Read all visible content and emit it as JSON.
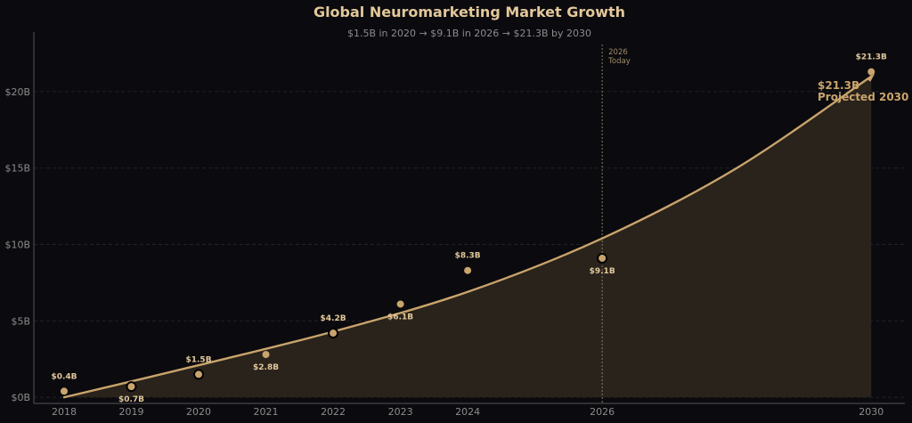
{
  "chart_data": {
    "type": "line",
    "title": "Global Neuromarketing Market Growth",
    "subtitle": "$1.5B in 2020 → $9.1B in 2026 → $21.3B by 2030",
    "x": [
      2018,
      2019,
      2020,
      2021,
      2022,
      2023,
      2024,
      2026,
      2030
    ],
    "y": [
      0.4,
      0.7,
      1.5,
      2.8,
      4.2,
      6.1,
      8.3,
      9.1,
      21.3
    ],
    "data_labels": [
      "$0.4B",
      "$0.7B",
      "$1.5B",
      "$2.8B",
      "$4.2B",
      "$6.1B",
      "$8.3B",
      "$9.1B",
      "$21.3B"
    ],
    "highlighted_years": [
      2019,
      2020,
      2022,
      2026
    ],
    "x_ticks": [
      "2018",
      "2019",
      "2020",
      "2021",
      "2022",
      "2023",
      "2024",
      "2026",
      "2030"
    ],
    "y_ticks": [
      {
        "value": 0,
        "label": "$0B"
      },
      {
        "value": 5,
        "label": "$5B"
      },
      {
        "value": 10,
        "label": "$10B"
      },
      {
        "value": 15,
        "label": "$15B"
      },
      {
        "value": 20,
        "label": "$20B"
      }
    ],
    "xlim": [
      2017.55,
      2030.5
    ],
    "ylim": [
      -0.4,
      23.9
    ],
    "trend_curve": {
      "x": [
        2018,
        2020,
        2022,
        2024,
        2026,
        2028,
        2030
      ],
      "y": [
        0.0,
        2.1,
        4.3,
        6.9,
        10.4,
        15.0,
        21.0
      ],
      "area_fill": true
    },
    "today_marker": {
      "x": 2026,
      "label_line1": "2026",
      "label_line2": "Today"
    },
    "callout": {
      "line1": "$21.3B",
      "line2": "Projected 2030"
    },
    "grid": "horizontal-dashed",
    "colors": {
      "background": "#0b0a0e",
      "accent": "#c9a46c",
      "title": "#e2c89a",
      "area_fill": "#2c261e",
      "grid": "#222228",
      "axis": "#555555",
      "muted_text": "#8c8c8c"
    }
  }
}
